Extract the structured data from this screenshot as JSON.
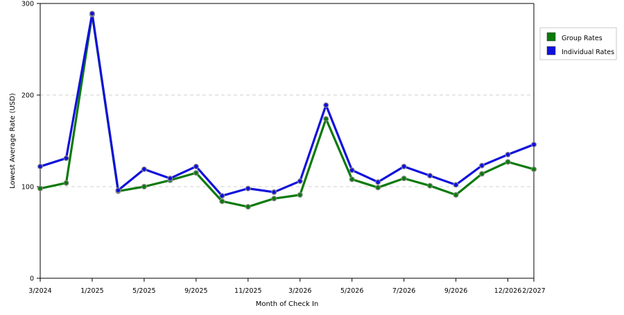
{
  "chart_data": {
    "type": "line",
    "xlabel": "Month of Check In",
    "ylabel": "Lowest Average Rate (USD)",
    "ylim": [
      0,
      300
    ],
    "yticks": [
      0,
      100,
      200,
      300
    ],
    "x_tick_labels": [
      "3/2024",
      "1/2025",
      "5/2025",
      "9/2025",
      "11/2025",
      "3/2026",
      "5/2026",
      "7/2026",
      "9/2026",
      "12/2026",
      "2/2027"
    ],
    "x_tick_indices": [
      0,
      2,
      4,
      6,
      8,
      10,
      12,
      14,
      16,
      18,
      19
    ],
    "num_points": 20,
    "grid": true,
    "legend_position": "right",
    "series": [
      {
        "name": "Group Rates",
        "color": "#0b7a0b",
        "values": [
          98,
          104,
          288,
          95,
          100,
          107,
          115,
          84,
          78,
          87,
          91,
          174,
          108,
          99,
          109,
          101,
          91,
          114,
          127,
          119
        ]
      },
      {
        "name": "Individual Rates",
        "color": "#1010dd",
        "values": [
          122,
          131,
          289,
          96,
          119,
          109,
          122,
          90,
          98,
          94,
          106,
          189,
          118,
          105,
          122,
          112,
          102,
          123,
          135,
          146
        ]
      }
    ]
  }
}
